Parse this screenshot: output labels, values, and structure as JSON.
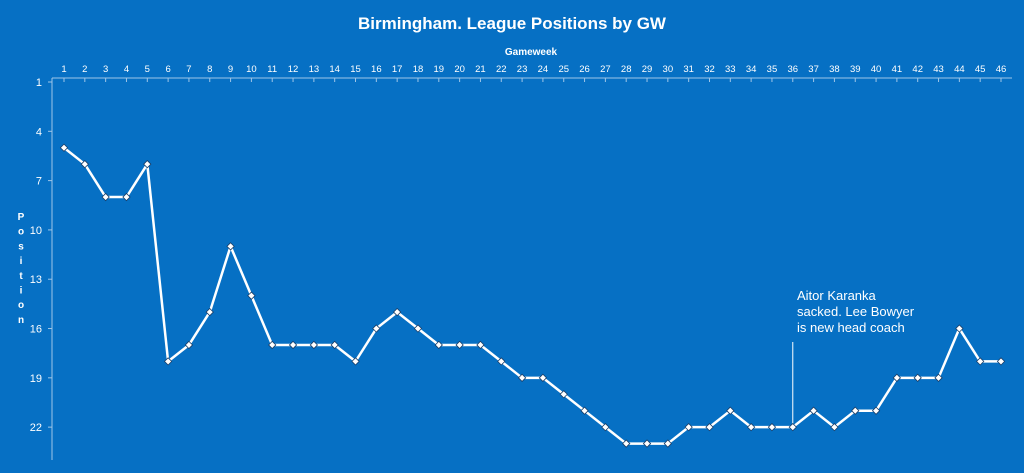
{
  "chart_data": {
    "type": "line",
    "title": "Birmingham. League Positions by GW",
    "xlabel": "Gameweek",
    "ylabel": "Position",
    "x": [
      1,
      2,
      3,
      4,
      5,
      6,
      7,
      8,
      9,
      10,
      11,
      12,
      13,
      14,
      15,
      16,
      17,
      18,
      19,
      20,
      21,
      22,
      23,
      24,
      25,
      26,
      27,
      28,
      29,
      30,
      31,
      32,
      33,
      34,
      35,
      36,
      37,
      38,
      39,
      40,
      41,
      42,
      43,
      44,
      45,
      46
    ],
    "series": [
      {
        "values": [
          5,
          6,
          8,
          8,
          6,
          18,
          17,
          15,
          11,
          14,
          17,
          17,
          17,
          17,
          18,
          16,
          15,
          16,
          17,
          17,
          17,
          18,
          19,
          19,
          20,
          21,
          22,
          23,
          23,
          23,
          22,
          22,
          21,
          22,
          22,
          22,
          21,
          22,
          21,
          21,
          19,
          19,
          19,
          16,
          18,
          18
        ]
      }
    ],
    "yticks": [
      1,
      4,
      7,
      10,
      13,
      16,
      19,
      22
    ],
    "ylim": [
      1,
      24
    ],
    "y_inverted": true,
    "x_axis_position": "top",
    "grid": false,
    "annotation": {
      "text_lines": [
        "Aitor Karanka",
        "sacked. Lee Bowyer",
        "is new head coach"
      ],
      "gameweek": 36
    },
    "colors": {
      "background": "#0670c4",
      "line": "#ffffff",
      "marker_fill": "#ffffff",
      "text": "#ffffff"
    }
  }
}
